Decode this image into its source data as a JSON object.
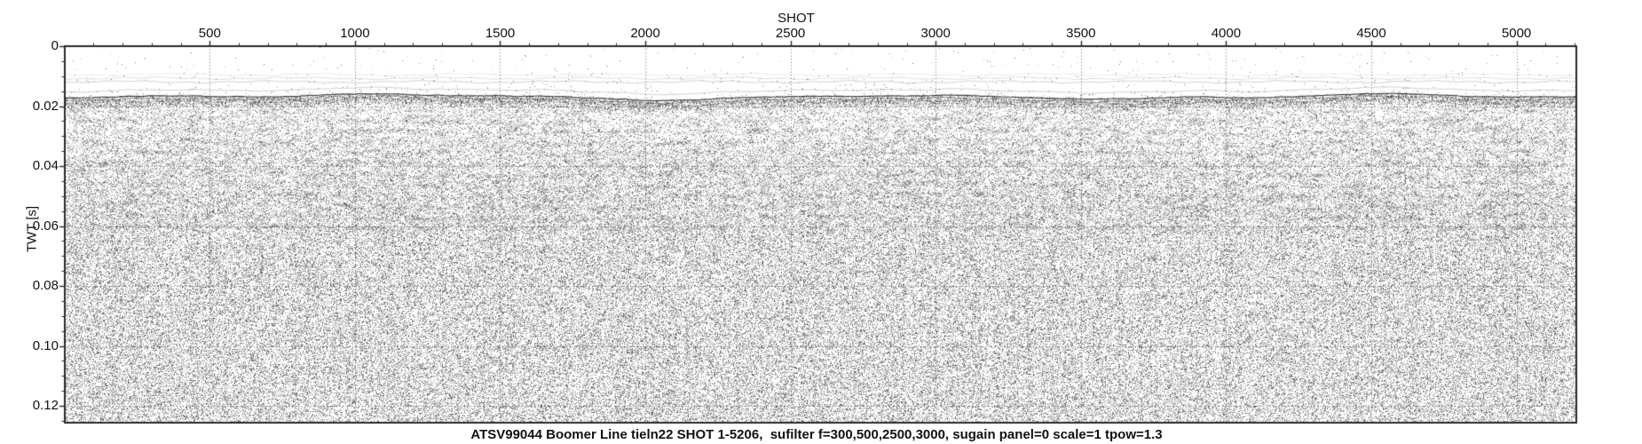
{
  "figure": {
    "caption": "ATSV99044 Boomer Line tieln22 SHOT 1-5206,  sufilter f=300,500,2500,3000, sugain panel=0 scale=1 tpow=1.3",
    "background": "#ffffff"
  },
  "chart_data": {
    "type": "heatmap",
    "subtype": "seismic-section",
    "title": "",
    "xlabel": "SHOT",
    "ylabel": "TWT [s]",
    "x_range": [
      1,
      5206
    ],
    "x_major_ticks": [
      500,
      1000,
      1500,
      2000,
      2500,
      3000,
      3500,
      4000,
      4500,
      5000
    ],
    "x_major_tick_labels": [
      "500",
      "1000",
      "1500",
      "2000",
      "2500",
      "3000",
      "3500",
      "4000",
      "4500",
      "5000"
    ],
    "x_minor_tick_interval": 100,
    "y_range_s": [
      0,
      0.1256
    ],
    "y_major_ticks": [
      0,
      0.02,
      0.04,
      0.06,
      0.08,
      0.1,
      0.12
    ],
    "y_major_tick_labels": [
      "0",
      "0.02",
      "0.04",
      "0.06",
      "0.08",
      "0.10",
      "0.12"
    ],
    "y_minor_tick_interval": 0.005,
    "grid": {
      "style": "dotted",
      "x_lines": [
        500,
        1000,
        1500,
        2000,
        2500,
        3000,
        3500,
        4000,
        4500,
        5000
      ],
      "y_lines": [
        0.02,
        0.04,
        0.06,
        0.08,
        0.1,
        0.12
      ]
    },
    "legend": null,
    "features": {
      "top_blank_zone_s": [
        0,
        0.008
      ],
      "direct_wave_lines_s": [
        0.0095,
        0.0107,
        0.0119
      ],
      "seafloor_reflection_s": 0.0172,
      "seafloor_variation_s": 0.0015,
      "seabed_dense_band_s": [
        0.0175,
        0.022
      ],
      "layered_noise_zone_s": [
        0.021,
        0.062
      ],
      "uniform_speckle_zone_s": [
        0.062,
        0.1256
      ],
      "texture": "grayscale variable-density speckle with wavy horizontal layering"
    },
    "colors": {
      "background": "#ffffff",
      "axis": "#2a2a2a",
      "grid_dots": "#3a3a3a",
      "seafloor": "#2f2f2f",
      "noise": "#000000",
      "label_text": "#111111"
    }
  }
}
